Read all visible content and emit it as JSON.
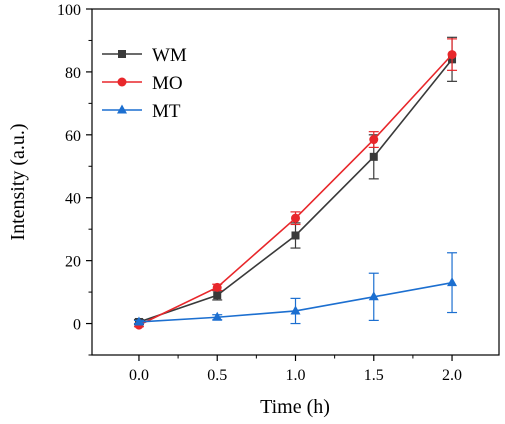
{
  "chart_data": {
    "type": "line",
    "title": "",
    "xlabel": "Time (h)",
    "ylabel": "Intensity (a.u.)",
    "xlim": [
      -0.3,
      2.3
    ],
    "ylim": [
      -10,
      100
    ],
    "xticks": [
      0.0,
      0.5,
      1.0,
      1.5,
      2.0
    ],
    "xtick_labels": [
      "0.0",
      "0.5",
      "1.0",
      "1.5",
      "2.0"
    ],
    "yticks": [
      0,
      20,
      40,
      60,
      80,
      100
    ],
    "ytick_labels": [
      "0",
      "20",
      "40",
      "60",
      "80",
      "100"
    ],
    "grid": false,
    "legend_position": "top-left",
    "series": [
      {
        "name": "WM",
        "color": "#3a3a3a",
        "marker": "square",
        "x": [
          0,
          0.5,
          1.0,
          1.5,
          2.0
        ],
        "y": [
          0.5,
          9,
          28,
          53,
          84
        ],
        "err": [
          0.8,
          1.5,
          4,
          7,
          7
        ]
      },
      {
        "name": "MO",
        "color": "#e8272b",
        "marker": "circle",
        "x": [
          0,
          0.5,
          1.0,
          1.5,
          2.0
        ],
        "y": [
          -0.5,
          11.5,
          33.5,
          58.5,
          85.5
        ],
        "err": [
          0.5,
          1,
          2,
          2.5,
          5
        ]
      },
      {
        "name": "MT",
        "color": "#1c6fd0",
        "marker": "triangle",
        "x": [
          0,
          0.5,
          1.0,
          1.5,
          2.0
        ],
        "y": [
          0.5,
          2,
          4,
          8.5,
          13
        ],
        "err": [
          0.5,
          0.8,
          4,
          7.5,
          9.5
        ]
      }
    ]
  }
}
